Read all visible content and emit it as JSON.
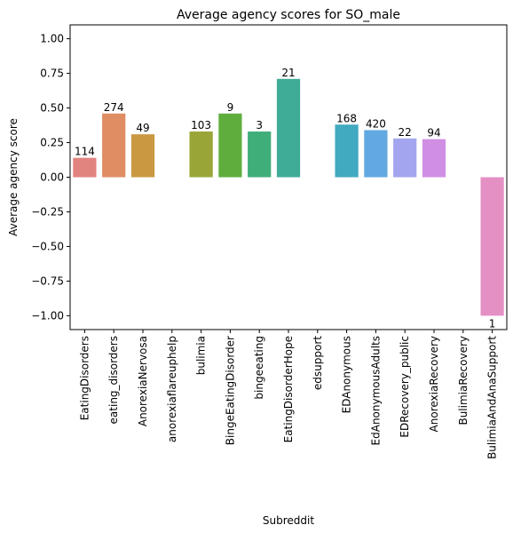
{
  "chart_data": {
    "type": "bar",
    "title": "Average agency scores for SO_male",
    "xlabel": "Subreddit",
    "ylabel": "Average agency score",
    "ylim": [
      -1.1,
      1.1
    ],
    "yticks": [
      -1.0,
      -0.75,
      -0.5,
      -0.25,
      0.0,
      0.25,
      0.5,
      0.75,
      1.0
    ],
    "ytick_labels": [
      "−1.00",
      "−0.75",
      "−0.50",
      "−0.25",
      "0.00",
      "0.25",
      "0.50",
      "0.75",
      "1.00"
    ],
    "grid": false,
    "categories": [
      "EatingDisorders",
      "eating_disorders",
      "AnorexiaNervosa",
      "anorexiaflareuphelp",
      "bulimia",
      "BingeEatingDisorder",
      "bingeeating",
      "EatingDisorderHope",
      "edsupport",
      "EDAnonymous",
      "EdAnonymousAdults",
      "EDRecovery_public",
      "AnorexiaRecovery",
      "BulimiaRecovery",
      "BulimiaAndAnaSupport"
    ],
    "values": [
      0.14,
      0.46,
      0.31,
      null,
      0.33,
      0.46,
      0.33,
      0.71,
      null,
      0.38,
      0.34,
      0.28,
      0.275,
      null,
      -1.0
    ],
    "counts": [
      "114",
      "274",
      "49",
      "",
      "103",
      "9",
      "3",
      "21",
      "",
      "168",
      "420",
      "22",
      "94",
      "",
      "1"
    ],
    "colors": [
      "#e1837f",
      "#e08d63",
      "#c99841",
      "#b5a034",
      "#99a637",
      "#5fae3d",
      "#40ae79",
      "#3fac98",
      "#40aaa9",
      "#41a9c0",
      "#62a9e1",
      "#a3a6ee",
      "#d08fe3",
      "#e085cf",
      "#e490c5"
    ]
  }
}
